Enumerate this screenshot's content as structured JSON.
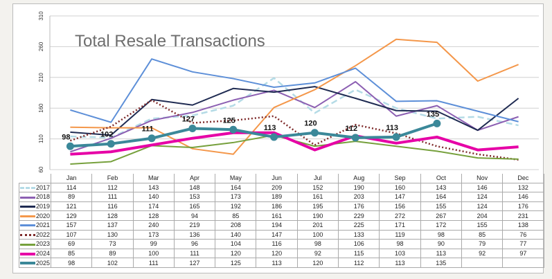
{
  "chart_data": {
    "type": "line",
    "title": "Total Resale Transactions",
    "xlabel": "",
    "ylabel": "",
    "ylim": [
      60,
      310
    ],
    "yticks": [
      "60",
      "110",
      "160",
      "210",
      "260",
      "310"
    ],
    "grid": true,
    "legend": "table-below",
    "categories": [
      "Jan",
      "Feb",
      "Mar",
      "Apr",
      "May",
      "Jun",
      "Jul",
      "Aug",
      "Sep",
      "Oct",
      "Nov",
      "Dec"
    ],
    "series": [
      {
        "name": "2017",
        "color": "#b4dbe6",
        "style": "dashed",
        "values": [
          114,
          112,
          143,
          148,
          164,
          209,
          152,
          190,
          160,
          143,
          146,
          132
        ]
      },
      {
        "name": "2018",
        "color": "#8c5fb2",
        "style": "solid",
        "values": [
          89,
          111,
          140,
          153,
          173,
          189,
          161,
          203,
          147,
          164,
          124,
          146
        ]
      },
      {
        "name": "2019",
        "color": "#1f2b52",
        "style": "solid",
        "values": [
          121,
          116,
          174,
          165,
          192,
          186,
          195,
          176,
          156,
          155,
          124,
          176
        ]
      },
      {
        "name": "2020",
        "color": "#f4974a",
        "style": "solid",
        "values": [
          129,
          128,
          128,
          94,
          85,
          161,
          190,
          229,
          272,
          267,
          204,
          231
        ]
      },
      {
        "name": "2021",
        "color": "#5d8fd8",
        "style": "solid",
        "values": [
          157,
          137,
          240,
          219,
          208,
          194,
          201,
          225,
          171,
          172,
          155,
          138
        ]
      },
      {
        "name": "2022",
        "color": "#7e2a2a",
        "style": "dotted",
        "values": [
          107,
          130,
          173,
          136,
          140,
          147,
          100,
          133,
          119,
          98,
          85,
          76
        ]
      },
      {
        "name": "2023",
        "color": "#76a03c",
        "style": "solid",
        "values": [
          69,
          73,
          99,
          96,
          104,
          116,
          98,
          106,
          98,
          90,
          79,
          77
        ]
      },
      {
        "name": "2024",
        "color": "#e600a6",
        "style": "thick",
        "values": [
          85,
          89,
          100,
          111,
          120,
          120,
          92,
          115,
          103,
          113,
          92,
          97
        ]
      },
      {
        "name": "2025",
        "color": "#3b8899",
        "style": "marker",
        "values": [
          98,
          102,
          111,
          127,
          125,
          113,
          120,
          112,
          113,
          135,
          null,
          null
        ]
      }
    ],
    "data_labels_series": "2025"
  }
}
